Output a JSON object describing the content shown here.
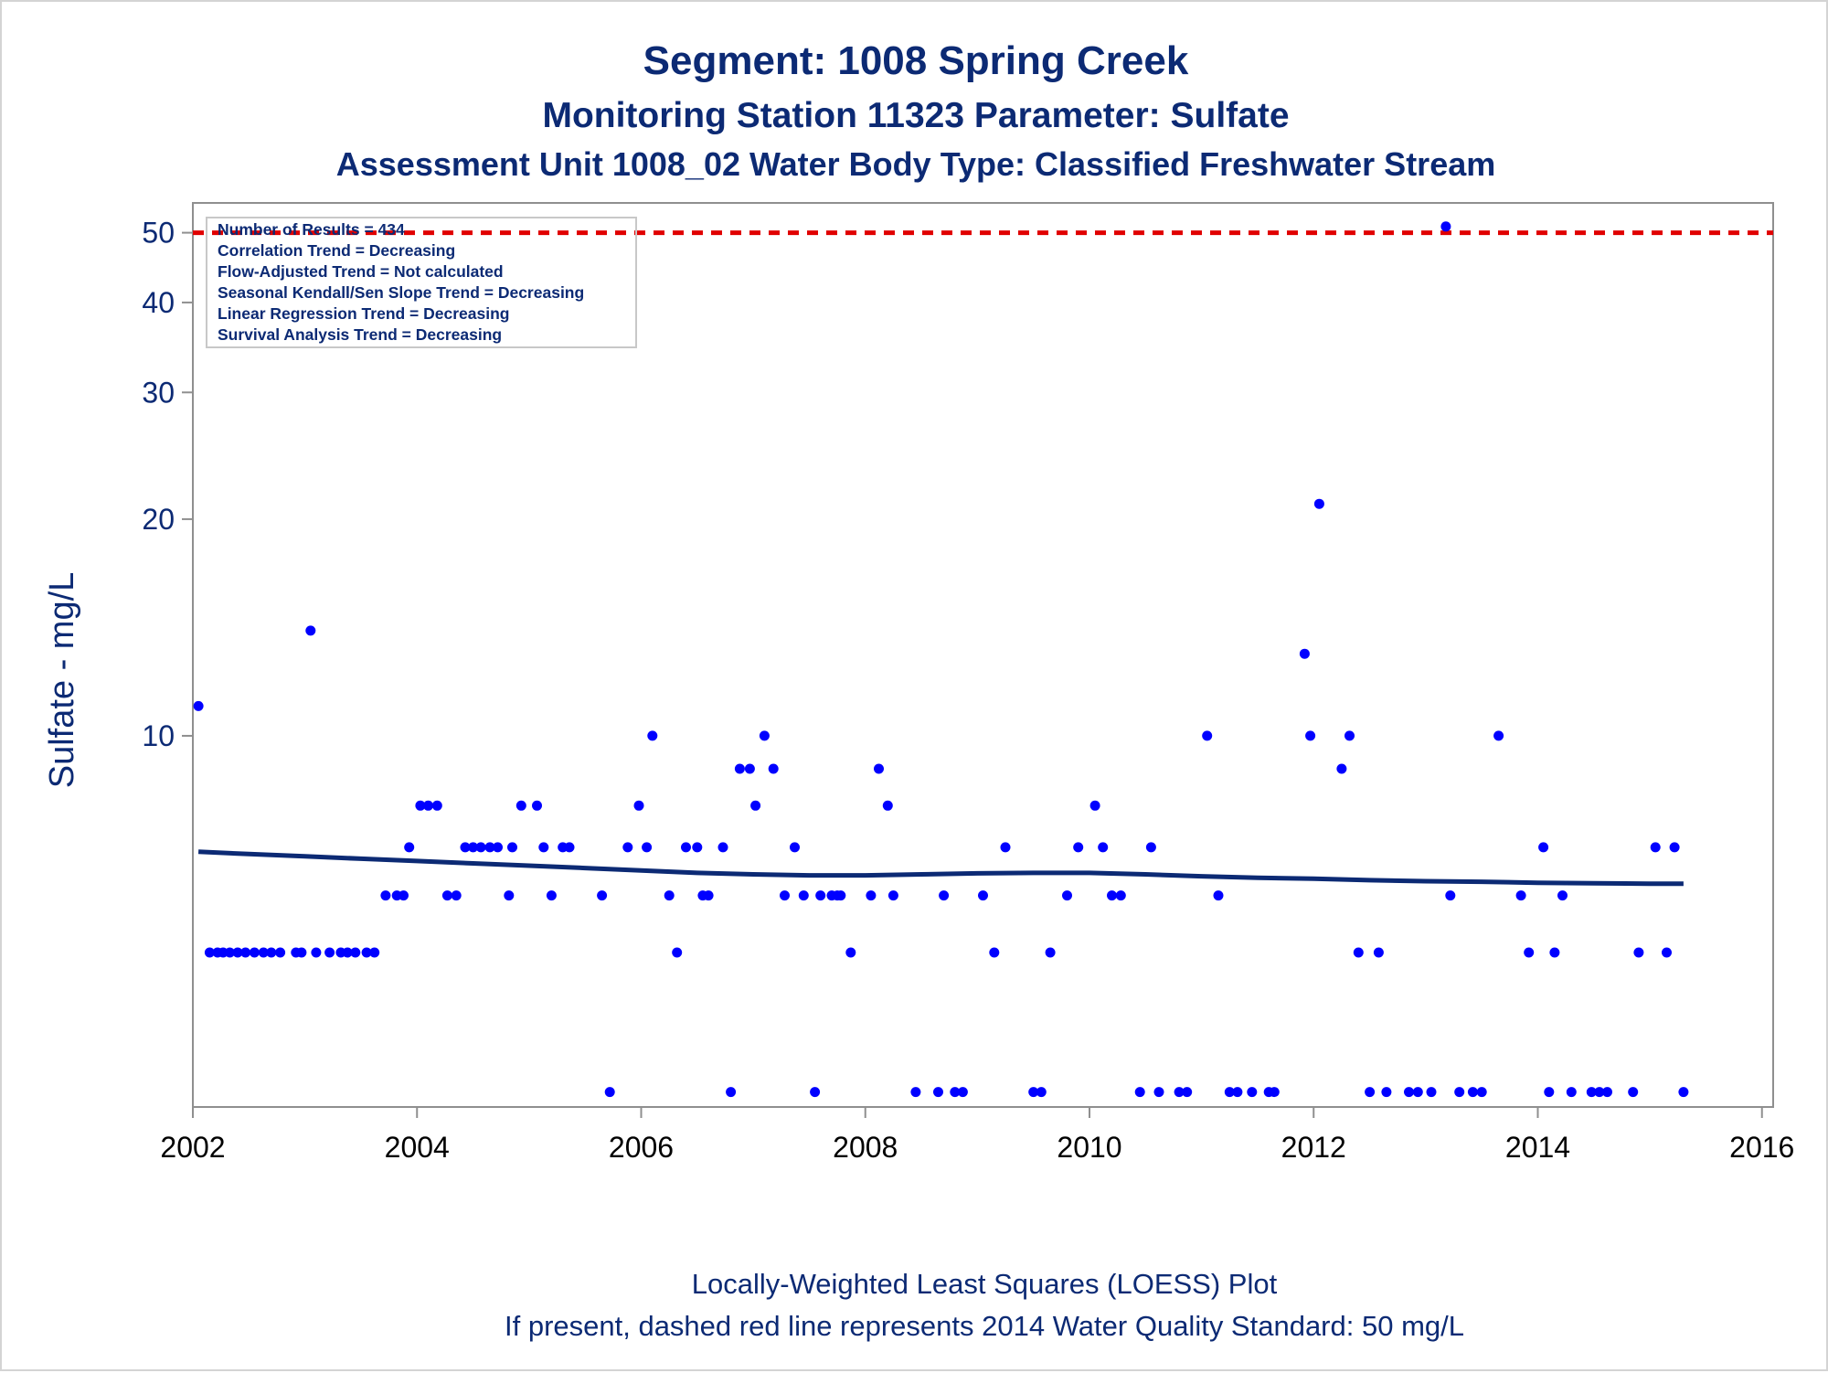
{
  "colors": {
    "title": "#0c2a74",
    "points": "#0000ff",
    "loess": "#0c2a74",
    "standard": "#e00000",
    "axis": "#8f8f8f"
  },
  "chart_data": {
    "type": "scatter",
    "title": "Segment: 1008  Spring Creek",
    "subtitle": "Monitoring Station 11323 Parameter: Sulfate",
    "subtitle2": "Assessment Unit 1008_02   Water Body Type: Classified Freshwater Stream",
    "ylabel": "Sulfate - mg/L",
    "xlabel": "",
    "y_scale": "log",
    "ylim": [
      3.05,
      55
    ],
    "xlim": [
      2002.0,
      2016.1
    ],
    "y_ticks": [
      10,
      20,
      30,
      40,
      50
    ],
    "x_ticks": [
      2002,
      2004,
      2006,
      2008,
      2010,
      2012,
      2014,
      2016
    ],
    "grid": false,
    "standard_line": {
      "value": 50,
      "style": "dashed",
      "color": "#e00000"
    },
    "stats": [
      "Number of Results = 434",
      "Correlation Trend = Decreasing",
      "Flow-Adjusted Trend = Not calculated",
      "Seasonal Kendall/Sen Slope Trend = Decreasing",
      "Linear Regression Trend = Decreasing",
      "Survival Analysis Trend = Decreasing"
    ],
    "footnote1": "Locally-Weighted Least Squares (LOESS) Plot",
    "footnote2": "If present, dashed red line represents 2014 Water Quality Standard: 50    mg/L",
    "loess": {
      "x": [
        2002.05,
        2002.5,
        2003.0,
        2003.5,
        2004.0,
        2004.5,
        2005.0,
        2005.5,
        2006.0,
        2006.5,
        2007.0,
        2007.5,
        2008.0,
        2008.5,
        2009.0,
        2009.5,
        2010.0,
        2010.5,
        2011.0,
        2011.5,
        2012.0,
        2012.5,
        2013.0,
        2013.5,
        2014.0,
        2014.5,
        2015.0,
        2015.3
      ],
      "y": [
        6.9,
        6.85,
        6.8,
        6.75,
        6.7,
        6.65,
        6.6,
        6.55,
        6.5,
        6.45,
        6.42,
        6.4,
        6.4,
        6.42,
        6.44,
        6.45,
        6.45,
        6.42,
        6.38,
        6.35,
        6.33,
        6.3,
        6.28,
        6.27,
        6.25,
        6.24,
        6.23,
        6.23
      ]
    },
    "series": [
      {
        "points": [
          [
            2002.05,
            11
          ],
          [
            2002.15,
            5
          ],
          [
            2002.22,
            5
          ],
          [
            2002.27,
            5
          ],
          [
            2002.33,
            5
          ],
          [
            2002.4,
            5
          ],
          [
            2002.47,
            5
          ],
          [
            2002.55,
            5
          ],
          [
            2002.63,
            5
          ],
          [
            2002.7,
            5
          ],
          [
            2002.78,
            5
          ],
          [
            2002.92,
            5
          ],
          [
            2002.97,
            5
          ],
          [
            2003.05,
            14
          ],
          [
            2003.1,
            5
          ],
          [
            2003.22,
            5
          ],
          [
            2003.32,
            5
          ],
          [
            2003.38,
            5
          ],
          [
            2003.45,
            5
          ],
          [
            2003.55,
            5
          ],
          [
            2003.62,
            5
          ],
          [
            2003.72,
            6
          ],
          [
            2003.82,
            6
          ],
          [
            2003.88,
            6
          ],
          [
            2003.93,
            7
          ],
          [
            2004.03,
            8
          ],
          [
            2004.1,
            8
          ],
          [
            2004.18,
            8
          ],
          [
            2004.27,
            6
          ],
          [
            2004.35,
            6
          ],
          [
            2004.43,
            7
          ],
          [
            2004.5,
            7
          ],
          [
            2004.57,
            7
          ],
          [
            2004.65,
            7
          ],
          [
            2004.72,
            7
          ],
          [
            2004.82,
            6
          ],
          [
            2004.85,
            7
          ],
          [
            2004.93,
            8
          ],
          [
            2005.07,
            8
          ],
          [
            2005.13,
            7
          ],
          [
            2005.2,
            6
          ],
          [
            2005.3,
            7
          ],
          [
            2005.36,
            7
          ],
          [
            2005.65,
            6
          ],
          [
            2005.72,
            3.2
          ],
          [
            2005.88,
            7
          ],
          [
            2005.98,
            8
          ],
          [
            2006.05,
            7
          ],
          [
            2006.1,
            10
          ],
          [
            2006.25,
            6
          ],
          [
            2006.32,
            5
          ],
          [
            2006.4,
            7
          ],
          [
            2006.5,
            7
          ],
          [
            2006.55,
            6
          ],
          [
            2006.6,
            6
          ],
          [
            2006.73,
            7
          ],
          [
            2006.8,
            3.2
          ],
          [
            2006.88,
            9
          ],
          [
            2006.97,
            9
          ],
          [
            2007.02,
            8
          ],
          [
            2007.1,
            10
          ],
          [
            2007.18,
            9
          ],
          [
            2007.28,
            6
          ],
          [
            2007.37,
            7
          ],
          [
            2007.45,
            6
          ],
          [
            2007.55,
            3.2
          ],
          [
            2007.6,
            6
          ],
          [
            2007.7,
            6
          ],
          [
            2007.75,
            6
          ],
          [
            2007.78,
            6
          ],
          [
            2007.87,
            5
          ],
          [
            2008.05,
            6
          ],
          [
            2008.12,
            9
          ],
          [
            2008.2,
            8
          ],
          [
            2008.25,
            6
          ],
          [
            2008.45,
            3.2
          ],
          [
            2008.65,
            3.2
          ],
          [
            2008.7,
            6
          ],
          [
            2008.8,
            3.2
          ],
          [
            2008.87,
            3.2
          ],
          [
            2009.05,
            6
          ],
          [
            2009.15,
            5
          ],
          [
            2009.25,
            7
          ],
          [
            2009.5,
            3.2
          ],
          [
            2009.57,
            3.2
          ],
          [
            2009.65,
            5
          ],
          [
            2009.8,
            6
          ],
          [
            2009.9,
            7
          ],
          [
            2010.05,
            8
          ],
          [
            2010.12,
            7
          ],
          [
            2010.2,
            6
          ],
          [
            2010.28,
            6
          ],
          [
            2010.45,
            3.2
          ],
          [
            2010.55,
            7
          ],
          [
            2010.62,
            3.2
          ],
          [
            2010.8,
            3.2
          ],
          [
            2010.87,
            3.2
          ],
          [
            2011.05,
            10
          ],
          [
            2011.15,
            6
          ],
          [
            2011.25,
            3.2
          ],
          [
            2011.32,
            3.2
          ],
          [
            2011.45,
            3.2
          ],
          [
            2011.6,
            3.2
          ],
          [
            2011.65,
            3.2
          ],
          [
            2011.92,
            13
          ],
          [
            2011.97,
            10
          ],
          [
            2012.05,
            21
          ],
          [
            2012.25,
            9
          ],
          [
            2012.32,
            10
          ],
          [
            2012.4,
            5
          ],
          [
            2012.5,
            3.2
          ],
          [
            2012.58,
            5
          ],
          [
            2012.65,
            3.2
          ],
          [
            2012.85,
            3.2
          ],
          [
            2012.93,
            3.2
          ],
          [
            2013.05,
            3.2
          ],
          [
            2013.18,
            51
          ],
          [
            2013.22,
            6
          ],
          [
            2013.3,
            3.2
          ],
          [
            2013.42,
            3.2
          ],
          [
            2013.5,
            3.2
          ],
          [
            2013.65,
            10
          ],
          [
            2013.85,
            6
          ],
          [
            2013.92,
            5
          ],
          [
            2014.05,
            7
          ],
          [
            2014.1,
            3.2
          ],
          [
            2014.15,
            5
          ],
          [
            2014.22,
            6
          ],
          [
            2014.3,
            3.2
          ],
          [
            2014.48,
            3.2
          ],
          [
            2014.55,
            3.2
          ],
          [
            2014.62,
            3.2
          ],
          [
            2014.85,
            3.2
          ],
          [
            2014.9,
            5
          ],
          [
            2015.05,
            7
          ],
          [
            2015.15,
            5
          ],
          [
            2015.22,
            7
          ],
          [
            2015.3,
            3.2
          ]
        ]
      }
    ]
  }
}
